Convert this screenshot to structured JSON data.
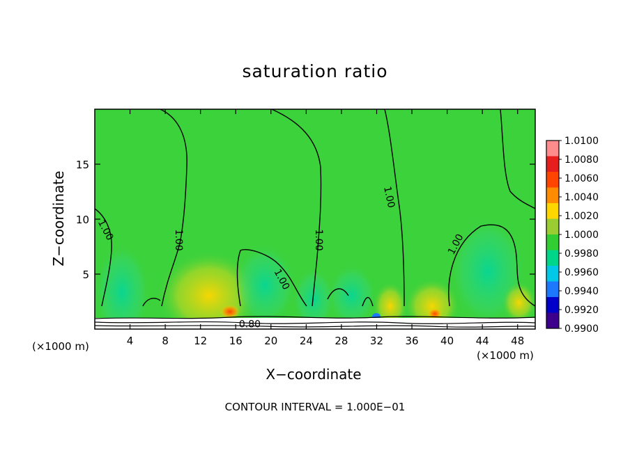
{
  "chart_data": {
    "type": "heatmap",
    "title": "saturation ratio",
    "xlabel": "X−coordinate",
    "ylabel": "Z−coordinate",
    "x_unit": "(×1000 m)",
    "y_unit": "(×1000 m)",
    "xlim": [
      0,
      50
    ],
    "ylim": [
      0,
      20
    ],
    "x_ticks": [
      4,
      8,
      12,
      16,
      20,
      24,
      28,
      32,
      36,
      40,
      44,
      48
    ],
    "y_ticks": [
      5,
      10,
      15
    ],
    "colorbar": {
      "levels": [
        "1.0100",
        "1.0080",
        "1.0060",
        "1.0040",
        "1.0020",
        "1.0000",
        "0.9980",
        "0.9960",
        "0.9940",
        "0.9920",
        "0.9900"
      ],
      "colors": [
        "#ff8c8c",
        "#e61e1e",
        "#ff4500",
        "#ff8c00",
        "#ffd700",
        "#9acd32",
        "#32cd32",
        "#00d68a",
        "#00c8e6",
        "#1e78ff",
        "#0000c8",
        "#3c008c"
      ]
    },
    "background_value_color": "#3cd23c",
    "contour_labels": [
      {
        "text": "1.00",
        "x": 1.2,
        "z": 9.0,
        "angle": 62
      },
      {
        "text": "1.00",
        "x": 9.5,
        "z": 8.1,
        "angle": 90
      },
      {
        "text": "1.00",
        "x": 25.4,
        "z": 8.1,
        "angle": 90
      },
      {
        "text": "1.00",
        "x": 33.4,
        "z": 12.0,
        "angle": 78
      },
      {
        "text": "1.00",
        "x": 41.0,
        "z": 7.7,
        "angle": -62
      },
      {
        "text": "1.00",
        "x": 21.2,
        "z": 4.5,
        "angle": 62
      },
      {
        "text": "0.80",
        "x": 17.6,
        "z": 0.4,
        "angle": 0
      }
    ],
    "contour_interval": "CONTOUR INTERVAL = 1.000E−01"
  }
}
